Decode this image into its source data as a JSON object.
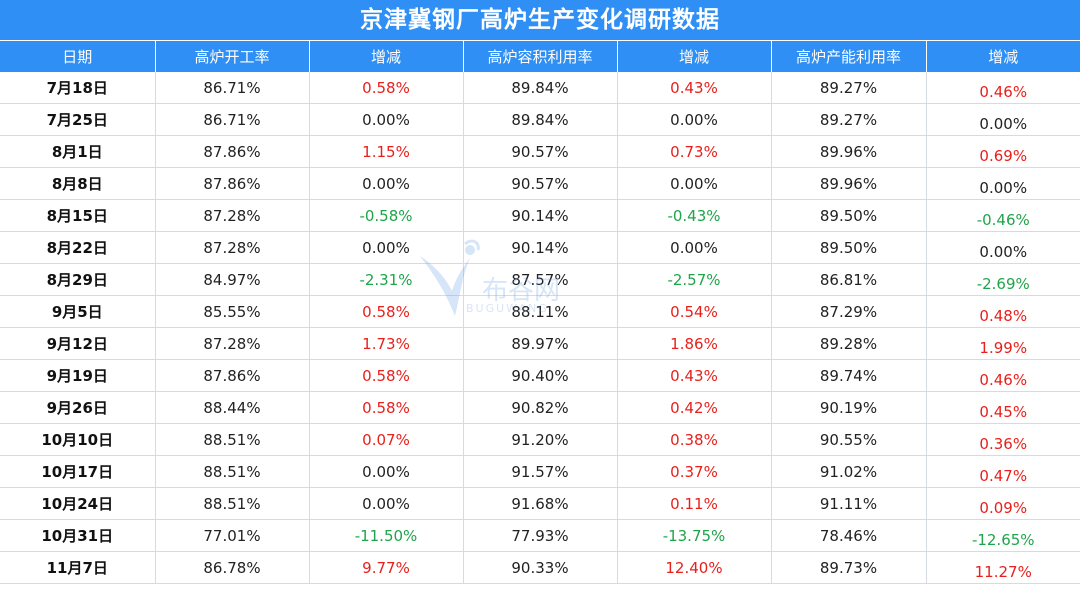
{
  "title": "京津冀钢厂高炉生产变化调研数据",
  "watermark": {
    "name": "布谷网",
    "sub": "BUGUWANG"
  },
  "colors": {
    "header_bg": "#2f8ff5",
    "positive": "#e8201c",
    "negative": "#1fa44a"
  },
  "chart_data": {
    "type": "table",
    "title": "京津冀钢厂高炉生产变化调研数据",
    "columns": [
      "日期",
      "高炉开工率",
      "增减",
      "高炉容积利用率",
      "增减",
      "高炉产能利用率",
      "增减"
    ],
    "rows": [
      [
        "7月18日",
        "86.71%",
        "0.58%",
        "89.84%",
        "0.43%",
        "89.27%",
        "0.46%"
      ],
      [
        "7月25日",
        "86.71%",
        "0.00%",
        "89.84%",
        "0.00%",
        "89.27%",
        "0.00%"
      ],
      [
        "8月1日",
        "87.86%",
        "1.15%",
        "90.57%",
        "0.73%",
        "89.96%",
        "0.69%"
      ],
      [
        "8月8日",
        "87.86%",
        "0.00%",
        "90.57%",
        "0.00%",
        "89.96%",
        "0.00%"
      ],
      [
        "8月15日",
        "87.28%",
        "-0.58%",
        "90.14%",
        "-0.43%",
        "89.50%",
        "-0.46%"
      ],
      [
        "8月22日",
        "87.28%",
        "0.00%",
        "90.14%",
        "0.00%",
        "89.50%",
        "0.00%"
      ],
      [
        "8月29日",
        "84.97%",
        "-2.31%",
        "87.57%",
        "-2.57%",
        "86.81%",
        "-2.69%"
      ],
      [
        "9月5日",
        "85.55%",
        "0.58%",
        "88.11%",
        "0.54%",
        "87.29%",
        "0.48%"
      ],
      [
        "9月12日",
        "87.28%",
        "1.73%",
        "89.97%",
        "1.86%",
        "89.28%",
        "1.99%"
      ],
      [
        "9月19日",
        "87.86%",
        "0.58%",
        "90.40%",
        "0.43%",
        "89.74%",
        "0.46%"
      ],
      [
        "9月26日",
        "88.44%",
        "0.58%",
        "90.82%",
        "0.42%",
        "90.19%",
        "0.45%"
      ],
      [
        "10月10日",
        "88.51%",
        "0.07%",
        "91.20%",
        "0.38%",
        "90.55%",
        "0.36%"
      ],
      [
        "10月17日",
        "88.51%",
        "0.00%",
        "91.57%",
        "0.37%",
        "91.02%",
        "0.47%"
      ],
      [
        "10月24日",
        "88.51%",
        "0.00%",
        "91.68%",
        "0.11%",
        "91.11%",
        "0.09%"
      ],
      [
        "10月31日",
        "77.01%",
        "-11.50%",
        "77.93%",
        "-13.75%",
        "78.46%",
        "-12.65%"
      ],
      [
        "11月7日",
        "86.78%",
        "9.77%",
        "90.33%",
        "12.40%",
        "89.73%",
        "11.27%"
      ]
    ]
  }
}
